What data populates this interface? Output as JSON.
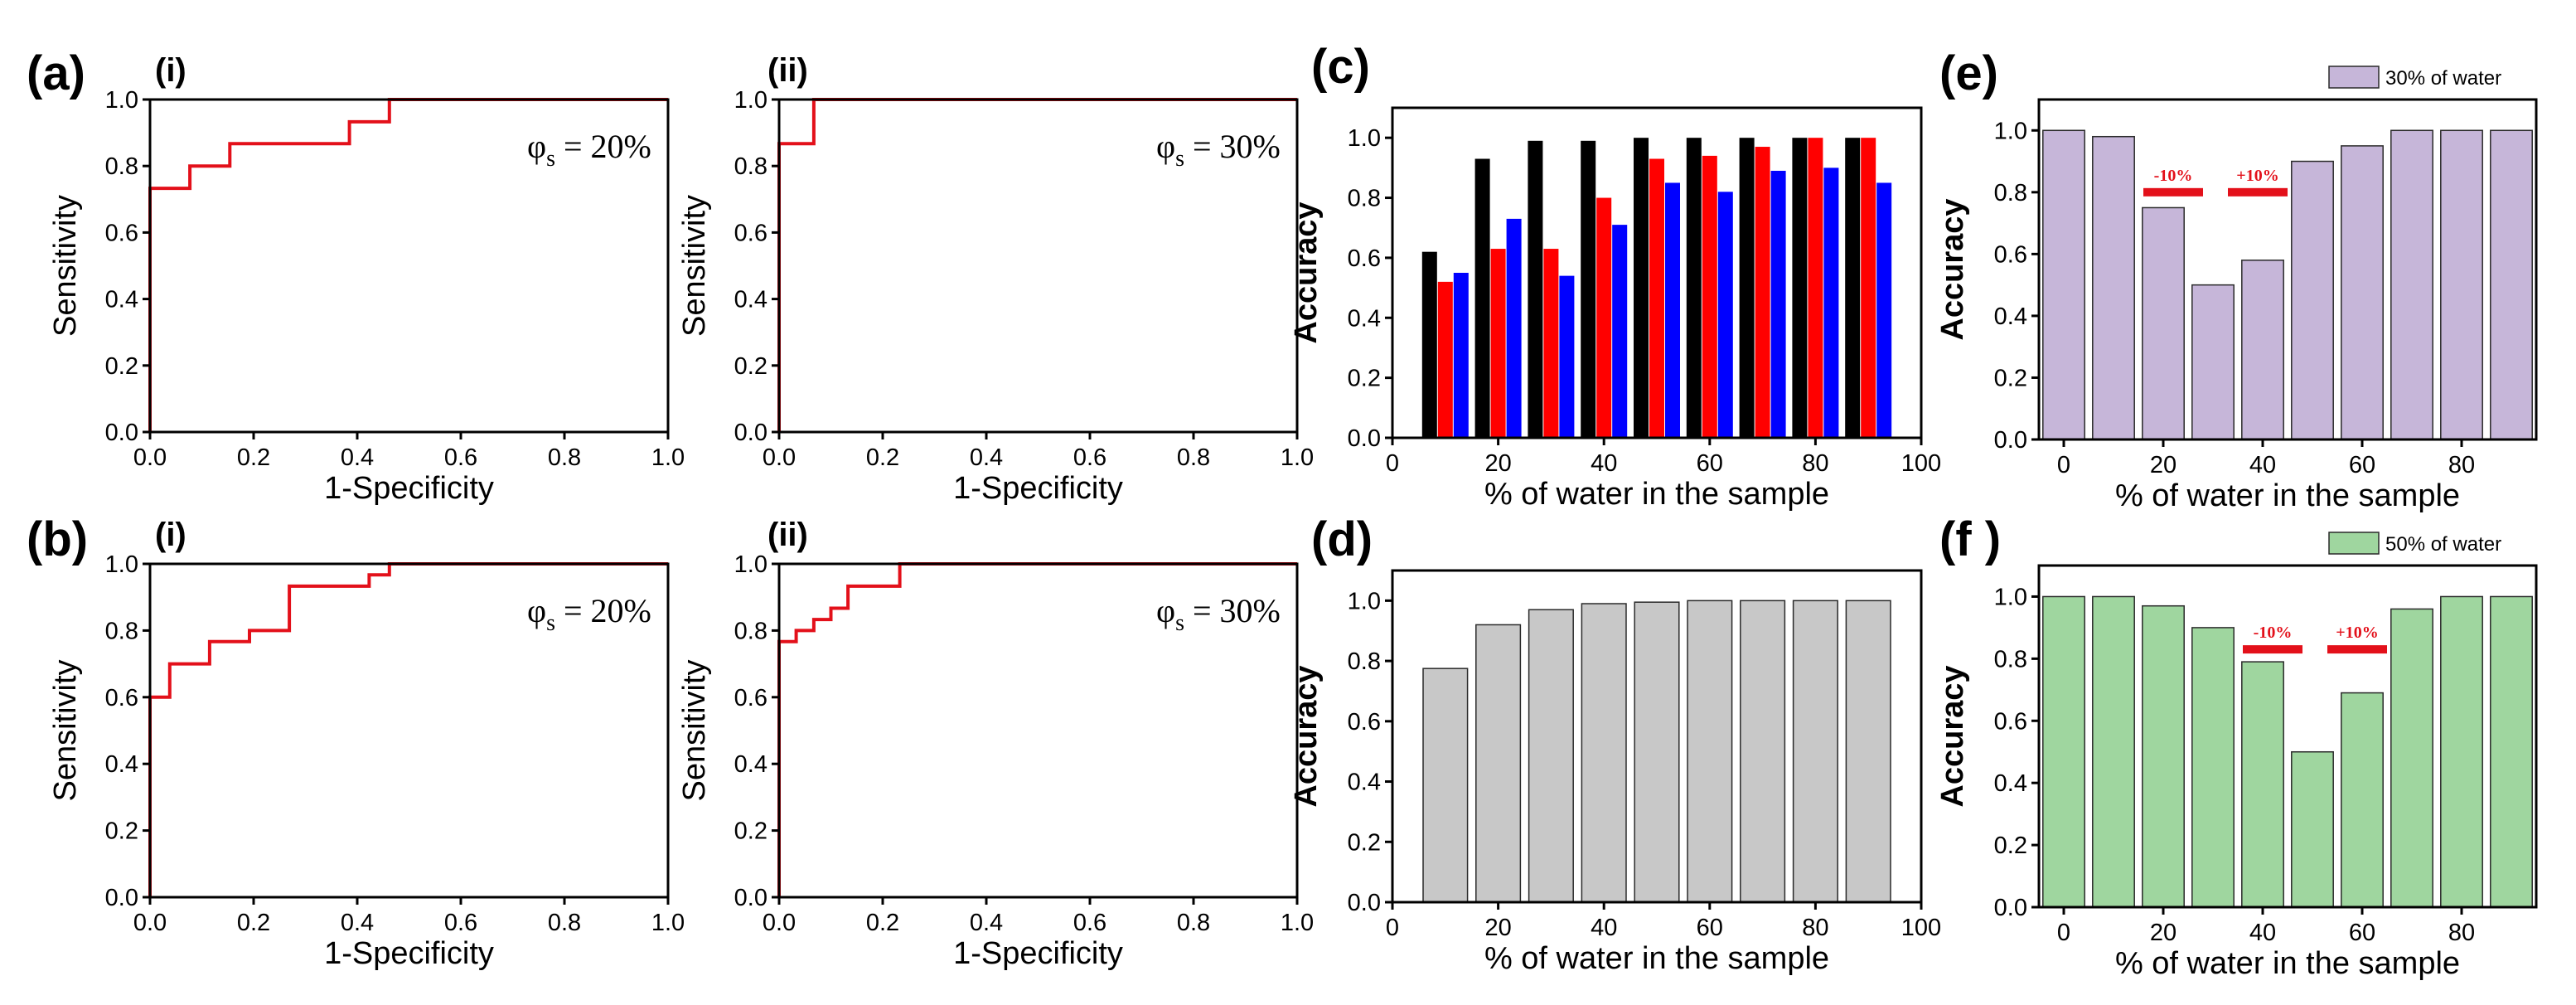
{
  "panel_labels": {
    "a": "(a)",
    "b": "(b)",
    "c": "(c)",
    "d": "(d)",
    "e": "(e)",
    "f": "(f )"
  },
  "colors": {
    "roc": "#e3101a",
    "black": "#000000",
    "red": "#ff0000",
    "blue": "#0000ff",
    "gray": "#c8c8c8",
    "purple": "#c6b6d9",
    "green": "#9fd69f",
    "annotation": "#e3101a"
  },
  "chart_data": [
    {
      "id": "a-i",
      "type": "line",
      "step": true,
      "sublabel": "(i)",
      "annotation": {
        "symbol": "φ",
        "subscript": "s",
        "text": " = 20%"
      },
      "xlabel": "1-Specificity",
      "ylabel": "Sensitivity",
      "xlim": [
        0,
        1
      ],
      "ylim": [
        0,
        1
      ],
      "xticks": [
        "0.0",
        "0.2",
        "0.4",
        "0.6",
        "0.8",
        "1.0"
      ],
      "yticks": [
        "0.0",
        "0.2",
        "0.4",
        "0.6",
        "0.8",
        "1.0"
      ],
      "x": [
        0,
        0,
        0.077,
        0.077,
        0.154,
        0.154,
        0.385,
        0.385,
        0.462,
        0.462,
        1.0
      ],
      "y": [
        0,
        0.733,
        0.733,
        0.8,
        0.8,
        0.867,
        0.867,
        0.933,
        0.933,
        1.0,
        1.0
      ]
    },
    {
      "id": "a-ii",
      "type": "line",
      "step": true,
      "sublabel": "(ii)",
      "annotation": {
        "symbol": "φ",
        "subscript": "s",
        "text": " = 30%"
      },
      "xlabel": "1-Specificity",
      "ylabel": "Sensitivity",
      "xlim": [
        0,
        1
      ],
      "ylim": [
        0,
        1
      ],
      "xticks": [
        "0.0",
        "0.2",
        "0.4",
        "0.6",
        "0.8",
        "1.0"
      ],
      "yticks": [
        "0.0",
        "0.2",
        "0.4",
        "0.6",
        "0.8",
        "1.0"
      ],
      "x": [
        0,
        0,
        0.067,
        0.067,
        1.0
      ],
      "y": [
        0,
        0.867,
        0.867,
        1.0,
        1.0
      ]
    },
    {
      "id": "b-i",
      "type": "line",
      "step": true,
      "sublabel": "(i)",
      "annotation": {
        "symbol": "φ",
        "subscript": "s",
        "text": " = 20%"
      },
      "xlabel": "1-Specificity",
      "ylabel": "Sensitivity",
      "xlim": [
        0,
        1
      ],
      "ylim": [
        0,
        1
      ],
      "xticks": [
        "0.0",
        "0.2",
        "0.4",
        "0.6",
        "0.8",
        "1.0"
      ],
      "yticks": [
        "0.0",
        "0.2",
        "0.4",
        "0.6",
        "0.8",
        "1.0"
      ],
      "x": [
        0,
        0,
        0.038,
        0.038,
        0.115,
        0.115,
        0.192,
        0.192,
        0.269,
        0.269,
        0.423,
        0.423,
        0.462,
        0.462,
        1.0
      ],
      "y": [
        0,
        0.6,
        0.6,
        0.7,
        0.7,
        0.767,
        0.767,
        0.8,
        0.8,
        0.933,
        0.933,
        0.967,
        0.967,
        1.0,
        1.0
      ]
    },
    {
      "id": "b-ii",
      "type": "line",
      "step": true,
      "sublabel": "(ii)",
      "annotation": {
        "symbol": "φ",
        "subscript": "s",
        "text": " = 30%"
      },
      "xlabel": "1-Specificity",
      "ylabel": "Sensitivity",
      "xlim": [
        0,
        1
      ],
      "ylim": [
        0,
        1
      ],
      "xticks": [
        "0.0",
        "0.2",
        "0.4",
        "0.6",
        "0.8",
        "1.0"
      ],
      "yticks": [
        "0.0",
        "0.2",
        "0.4",
        "0.6",
        "0.8",
        "1.0"
      ],
      "x": [
        0,
        0,
        0.033,
        0.033,
        0.067,
        0.067,
        0.1,
        0.1,
        0.133,
        0.133,
        0.233,
        0.233,
        1.0
      ],
      "y": [
        0,
        0.767,
        0.767,
        0.8,
        0.8,
        0.833,
        0.833,
        0.867,
        0.867,
        0.933,
        0.933,
        1.0,
        1.0
      ]
    },
    {
      "id": "c",
      "type": "bar",
      "xlabel": "% of water in the sample",
      "ylabel": "Accuracy",
      "xlim": [
        0,
        100
      ],
      "ylim": [
        0,
        1.1
      ],
      "xticks": [
        "0",
        "20",
        "40",
        "60",
        "80",
        "100"
      ],
      "yticks": [
        "0.0",
        "0.2",
        "0.4",
        "0.6",
        "0.8",
        "1.0"
      ],
      "categories": [
        10,
        20,
        30,
        40,
        50,
        60,
        70,
        80,
        90
      ],
      "series": [
        {
          "color": "#000000",
          "values": [
            0.62,
            0.93,
            0.99,
            0.99,
            1.0,
            1.0,
            1.0,
            1.0,
            1.0
          ]
        },
        {
          "color": "#ff0000",
          "values": [
            0.52,
            0.63,
            0.63,
            0.8,
            0.93,
            0.94,
            0.97,
            1.0,
            1.0
          ]
        },
        {
          "color": "#0000ff",
          "values": [
            0.55,
            0.73,
            0.54,
            0.71,
            0.85,
            0.82,
            0.89,
            0.9,
            0.85
          ]
        }
      ]
    },
    {
      "id": "d",
      "type": "bar",
      "xlabel": "% of water in the sample",
      "ylabel": "Accuracy",
      "xlim": [
        0,
        100
      ],
      "ylim": [
        0,
        1.1
      ],
      "xticks": [
        "0",
        "20",
        "40",
        "60",
        "80",
        "100"
      ],
      "yticks": [
        "0.0",
        "0.2",
        "0.4",
        "0.6",
        "0.8",
        "1.0"
      ],
      "categories": [
        10,
        20,
        30,
        40,
        50,
        60,
        70,
        80,
        90
      ],
      "values": [
        0.775,
        0.92,
        0.97,
        0.99,
        0.995,
        1.0,
        1.0,
        1.0,
        1.0
      ]
    },
    {
      "id": "e",
      "type": "bar",
      "xlabel": "% of water in the sample",
      "ylabel": "Accuracy",
      "xlim": [
        -5,
        95
      ],
      "ylim": [
        0,
        1.1
      ],
      "xticks": [
        "0",
        "20",
        "40",
        "60",
        "80"
      ],
      "yticks": [
        "0.0",
        "0.2",
        "0.4",
        "0.6",
        "0.8",
        "1.0"
      ],
      "legend": "30% of water",
      "categories": [
        0,
        10,
        20,
        30,
        40,
        50,
        60,
        70,
        80,
        90
      ],
      "values": [
        1.0,
        0.98,
        0.75,
        0.5,
        0.58,
        0.9,
        0.95,
        1.0,
        1.0,
        1.0
      ],
      "markers": [
        {
          "label": "-10%",
          "x_from": 16,
          "x_to": 28,
          "y": 0.8
        },
        {
          "label": "+10%",
          "x_from": 33,
          "x_to": 45,
          "y": 0.8
        }
      ]
    },
    {
      "id": "f",
      "type": "bar",
      "xlabel": "% of water in the sample",
      "ylabel": "Accuracy",
      "xlim": [
        -5,
        95
      ],
      "ylim": [
        0,
        1.1
      ],
      "xticks": [
        "0",
        "20",
        "40",
        "60",
        "80"
      ],
      "yticks": [
        "0.0",
        "0.2",
        "0.4",
        "0.6",
        "0.8",
        "1.0"
      ],
      "legend": "50% of water",
      "categories": [
        0,
        10,
        20,
        30,
        40,
        50,
        60,
        70,
        80,
        90
      ],
      "values": [
        1.0,
        1.0,
        0.97,
        0.9,
        0.79,
        0.5,
        0.69,
        0.96,
        1.0,
        1.0
      ],
      "markers": [
        {
          "label": "-10%",
          "x_from": 36,
          "x_to": 48,
          "y": 0.83
        },
        {
          "label": "+10%",
          "x_from": 53,
          "x_to": 65,
          "y": 0.83
        }
      ]
    }
  ]
}
